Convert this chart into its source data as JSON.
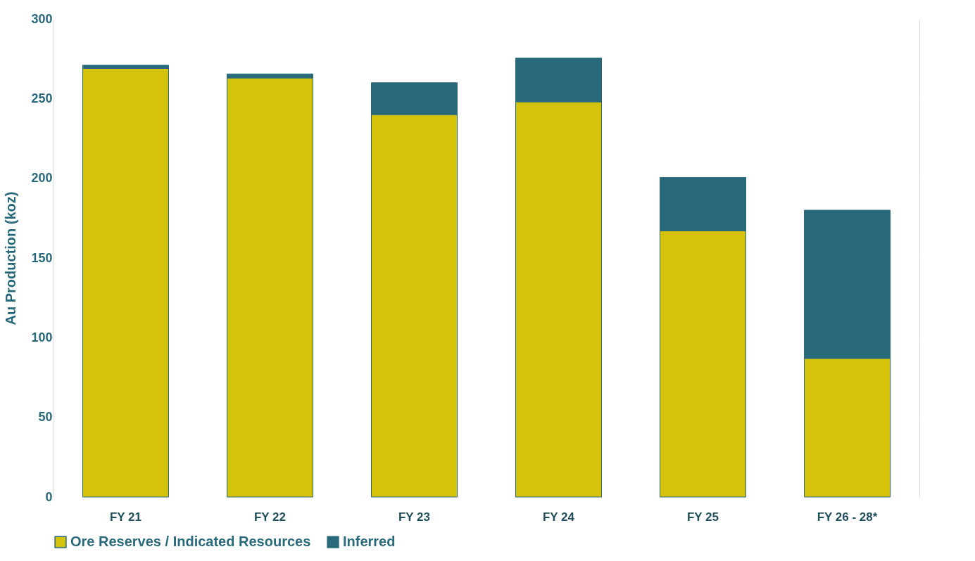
{
  "chart_data": {
    "type": "bar",
    "stacked": true,
    "ylabel": "Au Production (koz)",
    "categories": [
      "FY 21",
      "FY 22",
      "FY 23",
      "FY 24",
      "FY 25",
      "FY 26 - 28*"
    ],
    "series": [
      {
        "name": "Ore Reserves / Indicated Resources",
        "color": "#d4c20b",
        "values": [
          269,
          263,
          240,
          248,
          167,
          87
        ]
      },
      {
        "name": "Inferred",
        "color": "#286a7b",
        "values": [
          2,
          2.5,
          20,
          27.5,
          33.5,
          93
        ]
      }
    ],
    "ylim": [
      0,
      300
    ],
    "yticks": [
      0,
      50,
      100,
      150,
      200,
      250,
      300
    ],
    "grid": "y",
    "legend": "bottom"
  }
}
